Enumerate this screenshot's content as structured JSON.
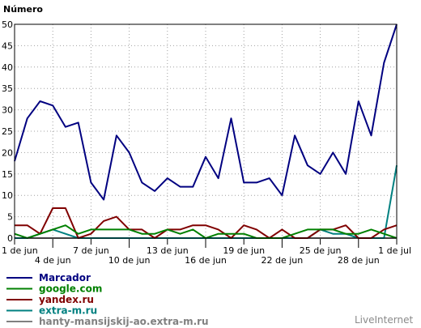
{
  "chart_data": {
    "type": "line",
    "ylabel": "Número",
    "ylim": [
      0,
      50
    ],
    "yticks": [
      0,
      5,
      10,
      15,
      20,
      25,
      30,
      35,
      40,
      45,
      50
    ],
    "grid": true,
    "x_tick_labels_upper": [
      {
        "day": 0,
        "label": "1 de jun"
      },
      {
        "day": 6,
        "label": "7 de jun"
      },
      {
        "day": 12,
        "label": "13 de jun"
      },
      {
        "day": 18,
        "label": "19 de jun"
      },
      {
        "day": 24,
        "label": "25 de jun"
      },
      {
        "day": 30,
        "label": "1 de jul"
      }
    ],
    "x_tick_labels_lower": [
      {
        "day": 3,
        "label": "4 de jun"
      },
      {
        "day": 9,
        "label": "10 de jun"
      },
      {
        "day": 15,
        "label": "16 de jun"
      },
      {
        "day": 21,
        "label": "22 de jun"
      },
      {
        "day": 27,
        "label": "28 de jun"
      }
    ],
    "x_days": 31,
    "series": [
      {
        "name": "Marcador",
        "color": "#000080",
        "values": [
          18,
          28,
          32,
          31,
          26,
          27,
          13,
          9,
          24,
          20,
          13,
          11,
          14,
          12,
          12,
          19,
          14,
          28,
          13,
          13,
          14,
          10,
          24,
          17,
          15,
          20,
          15,
          32,
          24,
          41,
          50
        ]
      },
      {
        "name": "google.com",
        "color": "#008000",
        "values": [
          1,
          0,
          1,
          2,
          3,
          1,
          2,
          2,
          2,
          2,
          1,
          1,
          2,
          1,
          2,
          0,
          1,
          1,
          1,
          0,
          0,
          0,
          1,
          2,
          2,
          2,
          1,
          1,
          2,
          1,
          0
        ]
      },
      {
        "name": "yandex.ru",
        "color": "#800000",
        "values": [
          3,
          3,
          1,
          7,
          7,
          0,
          1,
          4,
          5,
          2,
          2,
          0,
          2,
          2,
          3,
          3,
          2,
          0,
          3,
          2,
          0,
          2,
          0,
          0,
          2,
          2,
          3,
          0,
          0,
          2,
          3
        ]
      },
      {
        "name": "extra-m.ru",
        "color": "#008080",
        "values": [
          0,
          0,
          1,
          2,
          1,
          0,
          0,
          0,
          0,
          0,
          0,
          0,
          0,
          0,
          0,
          0,
          0,
          0,
          0,
          0,
          0,
          0,
          0,
          0,
          2,
          1,
          1,
          0,
          0,
          0,
          17
        ]
      },
      {
        "name": "hanty-mansijskij-ao.extra-m.ru",
        "color": "#808080",
        "values": [
          0,
          0,
          0,
          0,
          0,
          0,
          0,
          0,
          0,
          0,
          0,
          0,
          0,
          0,
          0,
          0,
          0,
          0,
          0,
          0,
          0,
          0,
          0,
          0,
          0,
          0,
          0,
          0,
          0,
          0,
          0
        ]
      }
    ],
    "credit": "LiveInternet"
  }
}
